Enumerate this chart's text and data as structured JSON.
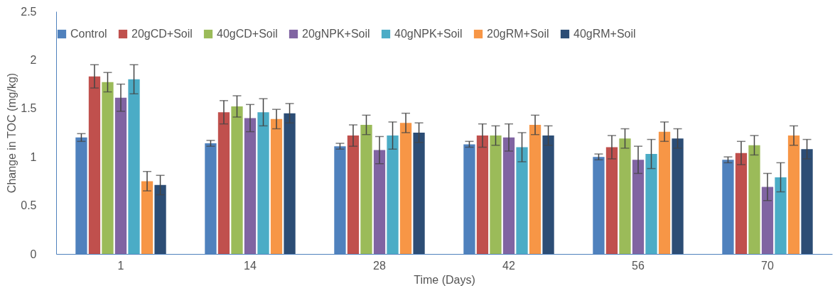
{
  "chart_data": {
    "type": "bar",
    "xlabel": "Time (Days)",
    "ylabel": "Change in TOC (mg/kg)",
    "categories": [
      "1",
      "14",
      "28",
      "42",
      "56",
      "70"
    ],
    "ylim": [
      0,
      2.5
    ],
    "yticks": [
      0,
      0.5,
      1,
      1.5,
      2,
      2.5
    ],
    "grid": false,
    "legend": "top",
    "series": [
      {
        "name": "Control",
        "color": "#4f81bd",
        "values": [
          1.2,
          1.14,
          1.11,
          1.13,
          1.0,
          0.97
        ],
        "errors": [
          0.04,
          0.03,
          0.03,
          0.03,
          0.03,
          0.03
        ]
      },
      {
        "name": "20gCD+Soil",
        "color": "#c0504d",
        "values": [
          1.83,
          1.46,
          1.22,
          1.22,
          1.1,
          1.04
        ],
        "errors": [
          0.12,
          0.12,
          0.11,
          0.12,
          0.12,
          0.12
        ]
      },
      {
        "name": "40gCD+Soil",
        "color": "#9bbb59",
        "values": [
          1.77,
          1.52,
          1.33,
          1.22,
          1.19,
          1.12
        ],
        "errors": [
          0.1,
          0.11,
          0.1,
          0.1,
          0.1,
          0.1
        ]
      },
      {
        "name": "20gNPK+Soil",
        "color": "#8064a2",
        "values": [
          1.61,
          1.4,
          1.07,
          1.2,
          0.97,
          0.69
        ],
        "errors": [
          0.14,
          0.14,
          0.14,
          0.14,
          0.14,
          0.14
        ]
      },
      {
        "name": "40gNPK+Soil",
        "color": "#4bacc6",
        "values": [
          1.8,
          1.46,
          1.22,
          1.1,
          1.03,
          0.79
        ],
        "errors": [
          0.15,
          0.14,
          0.14,
          0.15,
          0.15,
          0.15
        ]
      },
      {
        "name": "20gRM+Soil",
        "color": "#f79646",
        "values": [
          0.75,
          1.39,
          1.35,
          1.33,
          1.26,
          1.22
        ],
        "errors": [
          0.1,
          0.1,
          0.1,
          0.1,
          0.1,
          0.1
        ]
      },
      {
        "name": "40gRM+Soil",
        "color": "#2c4d75",
        "values": [
          0.71,
          1.45,
          1.25,
          1.22,
          1.19,
          1.08
        ],
        "errors": [
          0.1,
          0.1,
          0.1,
          0.1,
          0.1,
          0.1
        ]
      }
    ]
  }
}
